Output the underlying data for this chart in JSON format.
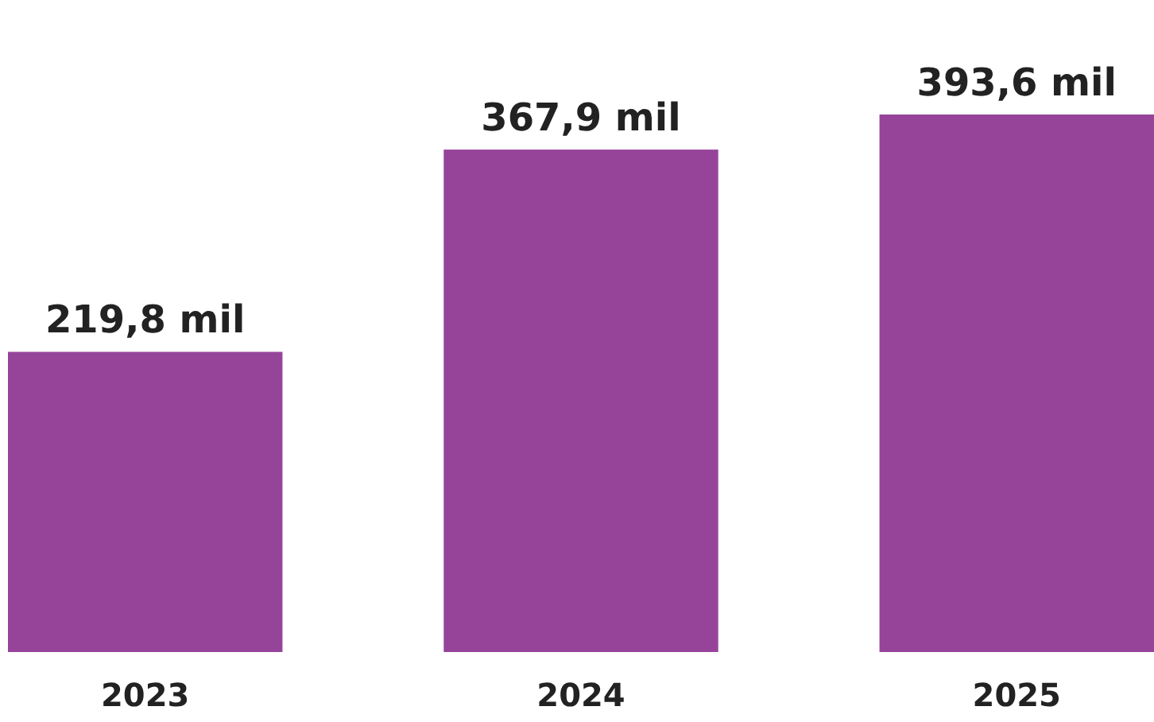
{
  "chart_data": {
    "type": "bar",
    "categories": [
      "2023",
      "2024",
      "2025"
    ],
    "values": [
      219.8,
      367.9,
      393.6
    ],
    "color": "#96449a",
    "value_labels": [
      "219,8 mil",
      "367,9 mil",
      "393,6 mil"
    ]
  }
}
